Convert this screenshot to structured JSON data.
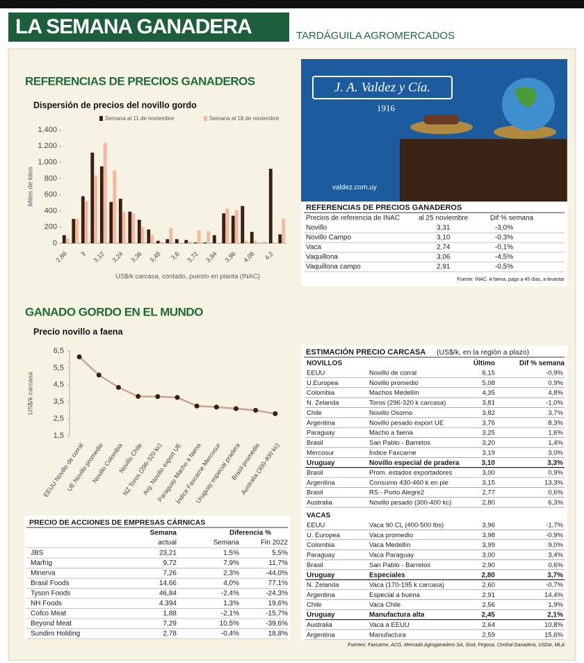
{
  "header": {
    "title": "LA SEMANA GANADERA",
    "subtitle": "TARDÁGUILA AGROMERCADOS"
  },
  "sections": [
    "REFERENCIAS DE PRECIOS GANADEROS",
    "GANADO GORDO EN EL MUNDO"
  ],
  "chart_data": [
    {
      "type": "bar",
      "title": "Dispersión de precios del novillo gordo",
      "x_label": "US$/k carcasa, contado, puesto en planta (INAC)",
      "y_label": "Miles de kilos",
      "categories": [
        "2,88",
        null,
        "3",
        null,
        "3,12",
        null,
        "3,24",
        null,
        "3,36",
        null,
        "3,48",
        null,
        "3,6",
        null,
        "3,72",
        null,
        "3,84",
        null,
        "3,96",
        null,
        "4,08",
        null,
        "4,2",
        null
      ],
      "series": [
        {
          "name": "Semana al 11 de noviembre",
          "color": "#3b1f14",
          "values": [
            100,
            300,
            580,
            1120,
            950,
            510,
            550,
            390,
            290,
            170,
            30,
            50,
            50,
            40,
            10,
            10,
            100,
            370,
            340,
            460,
            140,
            0,
            920,
            110
          ]
        },
        {
          "name": "Semana al 18 de noviembre",
          "color": "#f4b99a",
          "values": [
            60,
            300,
            520,
            840,
            1240,
            900,
            390,
            370,
            200,
            100,
            20,
            190,
            0,
            20,
            160,
            150,
            0,
            430,
            410,
            30,
            30,
            20,
            0,
            300
          ]
        }
      ],
      "ylim": [
        0,
        1400
      ],
      "yticks": [
        0,
        200,
        400,
        600,
        800,
        {
          "value": 1000,
          "label": "1.000"
        },
        {
          "value": 1200,
          "label": "1.200"
        },
        {
          "value": 1400,
          "label": "1.400"
        }
      ],
      "grid": false,
      "legend": "top"
    },
    {
      "type": "line",
      "title": "Precio novillo a faena",
      "y_label": "US$/k carcasa",
      "categories": [
        "EEUU Novillo de corral",
        "UE Novillo promedio",
        "Novillo Colombia",
        "Novillo Chile",
        "NZ Toros (296-320 kc)",
        "Arg. Novillo export UE",
        "Paraguay Macho a faena",
        "Índice Faxcarne Mercosur",
        "Uruguay especial pradera",
        "Brasil promedio",
        "Australia (300-400 kc)"
      ],
      "values": [
        6.15,
        5.08,
        4.35,
        3.82,
        3.81,
        3.76,
        3.25,
        3.19,
        3.1,
        3.0,
        2.8
      ],
      "color": "#c9a39a",
      "marker_color": "#3b1f14",
      "ylim": [
        1.5,
        6.5
      ],
      "yticks": [
        {
          "value": 1.5,
          "label": "1,5"
        },
        {
          "value": 2.5,
          "label": "2,5"
        },
        {
          "value": 3.5,
          "label": "3,5"
        },
        {
          "value": 4.5,
          "label": "4,5"
        },
        {
          "value": 5.5,
          "label": "5,5"
        },
        {
          "value": 6.5,
          "label": "6,5"
        }
      ],
      "grid": false
    }
  ],
  "ad": {
    "brand": "J. A. Valdez y Cía.",
    "year": "1916",
    "url": "valdez.com.uy"
  },
  "reference_table": {
    "title": "REFERENCIAS DE PRECIOS GANADEROS",
    "columns": [
      "Precios de referencia de INAC",
      "al  25 noviembre",
      "Dif % semana"
    ],
    "rows": [
      [
        "Novillo",
        "3,31",
        "-3,0%"
      ],
      [
        "Novillo Campo",
        "3,10",
        "-0,3%"
      ],
      [
        "Vaca",
        "2,74",
        "-0,1%"
      ],
      [
        "Vaquillona",
        "3,06",
        "-4,5%"
      ],
      [
        "Vaquillona campo",
        "2,91",
        "-0,5%"
      ]
    ],
    "source": "Fuente: INAC. A faena, pago a 45 días, a levantar"
  },
  "shares_table": {
    "title": "PRECIO DE ACCIONES DE EMPRESAS CÁRNICAS",
    "group_headers": [
      "Semana",
      "Diferencia %"
    ],
    "columns": [
      "actual",
      "Semana",
      "Fin 2022"
    ],
    "rows": [
      [
        "JBS",
        "23,21",
        "1,5%",
        "5,5%"
      ],
      [
        "Marfrig",
        "9,72",
        "7,9%",
        "11,7%"
      ],
      [
        "Minerva",
        "7,26",
        "2,3%",
        "-44,0%"
      ],
      [
        "Brasil Foods",
        "14,66",
        "4,0%",
        "77,1%"
      ],
      [
        "Tyson Foods",
        "46,84",
        "-2,4%",
        "-24,3%"
      ],
      [
        "NH Foods",
        "4.394",
        "1,3%",
        "19,6%"
      ],
      [
        "Cofco Meat",
        "1,88",
        "-2,1%",
        "-15,7%"
      ],
      [
        "Beyond Meat",
        "7,29",
        "10,5%",
        "-39,6%"
      ],
      [
        "Sundiro Holding",
        "2,78",
        "-0,4%",
        "18,8%"
      ]
    ]
  },
  "estimate_table": {
    "title": "ESTIMACIÓN PRECIO CARCASA",
    "title_note": "(US$/k, en la región a plazo)",
    "columns": [
      "Último",
      "Dif % semana"
    ],
    "sections": [
      {
        "name": "NOVILLOS",
        "bold_rows": [
          9
        ],
        "rows": [
          [
            "EEUU",
            "Novillo de corral",
            "6,15",
            "-0,9%"
          ],
          [
            "U.Europea",
            "Novillo promedio",
            "5,08",
            "0,9%"
          ],
          [
            "Colombia",
            "Machos Medellín",
            "4,35",
            "4,8%"
          ],
          [
            "N. Zelanda",
            "Toros (296-320 k carcasa)",
            "3,81",
            "-1,0%"
          ],
          [
            "Chile",
            "Novillo Osorno",
            "3,82",
            "3,7%"
          ],
          [
            "Argentina",
            "Novillo pesado export UE",
            "3,76",
            "8,3%"
          ],
          [
            "Paraguay",
            "Macho a faena",
            "3,25",
            "1,6%"
          ],
          [
            "Brasil",
            "San Pablo - Barretos",
            "3,20",
            "1,4%"
          ],
          [
            "Mercosur",
            "Índice Faxcarne",
            "3,19",
            "3,0%"
          ],
          [
            "Uruguay",
            "Novillo especial de pradera",
            "3,10",
            "3,3%"
          ],
          [
            "Brasil",
            "Prom. estados exportadores",
            "3,00",
            "0,9%"
          ],
          [
            "Argentina",
            "Consumo 430-460 k en pie",
            "3,15",
            "13,3%"
          ],
          [
            "Brasil",
            "RS - Porto Alegre2",
            "2,77",
            "0,6%"
          ],
          [
            "Australia",
            "Novillo pesado (300-400 kc)",
            "2,80",
            "6,3%"
          ]
        ]
      },
      {
        "name": "VACAS",
        "bold_rows": [
          5,
          9
        ],
        "rows": [
          [
            "EEUU",
            "Vaca 90 CL (400-500 lbs)",
            "3,96",
            "-1,7%"
          ],
          [
            "U. Europea",
            "Vaca promedio",
            "3,98",
            "-0,9%"
          ],
          [
            "Colombia",
            "Vaca Medellín",
            "3,99",
            "9,0%"
          ],
          [
            "Paraguay",
            "Vaca Paraguay",
            "3,00",
            "3,4%"
          ],
          [
            "Brasil",
            "San Pablo - Barretos",
            "2,90",
            "0,6%"
          ],
          [
            "Uruguay",
            "Especiales",
            "2,80",
            "3,7%"
          ],
          [
            "N. Zelanda",
            "Vaca (170-195 k carcasa)",
            "2,60",
            "-0,7%"
          ],
          [
            "Argentina",
            "Especial a buena",
            "2,91",
            "14,4%"
          ],
          [
            "Chile",
            "Vaca Chile",
            "2,56",
            "1,9%"
          ],
          [
            "Uruguay",
            "Manufactura alta",
            "2,45",
            "2,1%"
          ],
          [
            "Australia",
            "Vaca a EEUU",
            "2,64",
            "10,8%"
          ],
          [
            "Argentina",
            "Manufactura",
            "2,59",
            "15,6%"
          ]
        ]
      }
    ],
    "source": "Fuentes: Faxcarne, ACG, Mercado Agroganadero SA, Scot, Fegosa, Central Ganadera, USDA, MLA"
  }
}
